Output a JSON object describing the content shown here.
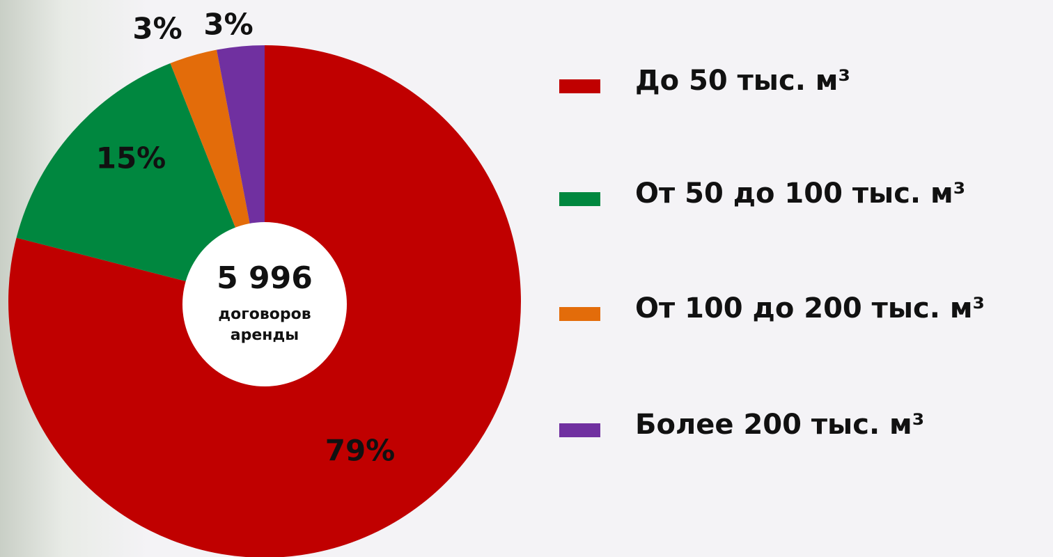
{
  "chart_data": {
    "type": "donut",
    "categories": [
      "До 50 тыс. м³",
      "От 50 до 100 тыс. м³",
      "От 100 до 200 тыс. м³",
      "Более 200 тыс. м³"
    ],
    "values": [
      79,
      15,
      3,
      3
    ],
    "value_labels": [
      "79%",
      "15%",
      "3%",
      "3%"
    ],
    "colors": [
      "#c00000",
      "#00873f",
      "#e36c0a",
      "#7030a0"
    ],
    "center_text": [
      "5 996",
      "договоров",
      "аренды"
    ],
    "legend": "right"
  }
}
